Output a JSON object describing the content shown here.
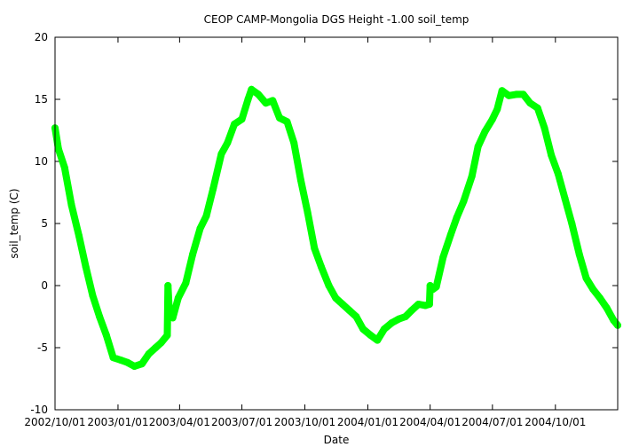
{
  "chart_data": {
    "type": "line",
    "title": "CEOP CAMP-Mongolia DGS Height -1.00 soil_temp",
    "xlabel": "Date",
    "ylabel": "soil_temp (C)",
    "ylim": [
      -10,
      20
    ],
    "yticks": [
      -10,
      -5,
      0,
      5,
      10,
      15,
      20
    ],
    "xlim": [
      "2002-10-01",
      "2004-12-31"
    ],
    "xticks": [
      "2002/10/01",
      "2003/01/01",
      "2003/04/01",
      "2003/07/01",
      "2003/10/01",
      "2004/01/01",
      "2004/04/01",
      "2004/07/01",
      "2004/10/01"
    ],
    "series": [
      {
        "name": "soil_temp",
        "color": "#00ff00",
        "x": [
          "2002-10-01",
          "2002-10-06",
          "2002-10-15",
          "2002-10-25",
          "2002-11-05",
          "2002-11-15",
          "2002-11-25",
          "2002-12-05",
          "2002-12-15",
          "2002-12-25",
          "2003-01-05",
          "2003-01-15",
          "2003-01-25",
          "2003-02-05",
          "2003-02-15",
          "2003-02-25",
          "2003-03-05",
          "2003-03-14",
          "2003-03-15",
          "2003-03-17",
          "2003-03-22",
          "2003-03-30",
          "2003-04-10",
          "2003-04-20",
          "2003-05-01",
          "2003-05-10",
          "2003-05-20",
          "2003-06-01",
          "2003-06-10",
          "2003-06-20",
          "2003-07-01",
          "2003-07-10",
          "2003-07-15",
          "2003-07-25",
          "2003-08-05",
          "2003-08-15",
          "2003-08-25",
          "2003-09-05",
          "2003-09-15",
          "2003-09-25",
          "2003-10-05",
          "2003-10-15",
          "2003-10-25",
          "2003-11-05",
          "2003-11-15",
          "2003-11-25",
          "2003-12-05",
          "2003-12-15",
          "2003-12-25",
          "2004-01-05",
          "2004-01-15",
          "2004-01-25",
          "2004-02-05",
          "2004-02-15",
          "2004-02-25",
          "2004-03-05",
          "2004-03-15",
          "2004-03-25",
          "2004-03-31",
          "2004-04-01",
          "2004-04-05",
          "2004-04-10",
          "2004-04-20",
          "2004-05-01",
          "2004-05-10",
          "2004-05-20",
          "2004-06-01",
          "2004-06-10",
          "2004-06-20",
          "2004-07-01",
          "2004-07-08",
          "2004-07-15",
          "2004-07-25",
          "2004-08-05",
          "2004-08-15",
          "2004-08-25",
          "2004-09-05",
          "2004-09-15",
          "2004-09-25",
          "2004-10-05",
          "2004-10-15",
          "2004-10-25",
          "2004-11-05",
          "2004-11-15",
          "2004-11-25",
          "2004-12-05",
          "2004-12-15",
          "2004-12-25",
          "2004-12-31"
        ],
        "y": [
          12.7,
          11.0,
          9.5,
          6.5,
          4.0,
          1.5,
          -0.8,
          -2.5,
          -4.0,
          -5.8,
          -6.0,
          -6.2,
          -6.5,
          -6.3,
          -5.5,
          -5.0,
          -4.6,
          -4.0,
          0.0,
          -2.2,
          -2.6,
          -1.0,
          0.2,
          2.5,
          4.6,
          5.6,
          7.8,
          10.6,
          11.5,
          13.0,
          13.4,
          15.0,
          15.8,
          15.4,
          14.7,
          14.9,
          13.5,
          13.2,
          11.5,
          8.5,
          5.9,
          3.0,
          1.5,
          0.0,
          -1.0,
          -1.5,
          -2.0,
          -2.5,
          -3.5,
          -4.0,
          -4.4,
          -3.5,
          -3.0,
          -2.7,
          -2.5,
          -2.0,
          -1.5,
          -1.6,
          -1.5,
          0.0,
          -0.3,
          -0.1,
          2.3,
          4.1,
          5.5,
          6.8,
          8.8,
          11.2,
          12.4,
          13.4,
          14.2,
          15.7,
          15.3,
          15.4,
          15.4,
          14.7,
          14.3,
          12.7,
          10.5,
          9.0,
          7.0,
          5.0,
          2.5,
          0.6,
          -0.3,
          -1.0,
          -1.8,
          -2.8,
          -3.2
        ]
      }
    ]
  }
}
